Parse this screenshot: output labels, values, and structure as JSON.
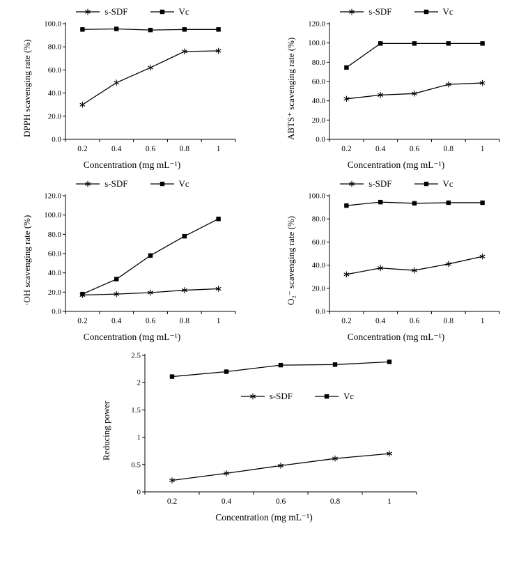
{
  "page": {
    "background": "#ffffff",
    "line_color": "#000000"
  },
  "chart_data": [
    {
      "type": "line",
      "title": "",
      "xlabel": "Concentration (mg mL⁻¹)",
      "ylabel": "DPPH scavenging rate (%)",
      "x_categories": [
        "0.2",
        "0.4",
        "0.6",
        "0.8",
        "1"
      ],
      "ylim": [
        0,
        100
      ],
      "ytick_labels": [
        "0.0",
        "20.0",
        "40.0",
        "60.0",
        "80.0",
        "100.0"
      ],
      "grid": false,
      "legend_position": "top",
      "series": [
        {
          "name": "s-SDF",
          "marker": "asterisk",
          "values": [
            30,
            49,
            62,
            76,
            76.5
          ]
        },
        {
          "name": "Vc",
          "marker": "square",
          "values": [
            95,
            95.5,
            94.5,
            95,
            95
          ]
        }
      ]
    },
    {
      "type": "line",
      "title": "",
      "xlabel": "Concentration (mg mL⁻¹)",
      "ylabel": "ABTS⁺ scavenging rate (%)",
      "x_categories": [
        "0.2",
        "0.4",
        "0.6",
        "0.8",
        "1"
      ],
      "ylim": [
        0,
        120
      ],
      "ytick_labels": [
        "0.0",
        "20.0",
        "40.0",
        "60.0",
        "80.0",
        "100.0",
        "120.0"
      ],
      "grid": false,
      "legend_position": "top",
      "series": [
        {
          "name": "s-SDF",
          "marker": "asterisk",
          "values": [
            42,
            46,
            47.5,
            57,
            58.5
          ]
        },
        {
          "name": "Vc",
          "marker": "square",
          "values": [
            74.5,
            99.5,
            99.5,
            99.5,
            99.5
          ]
        }
      ]
    },
    {
      "type": "line",
      "title": "",
      "xlabel": "Concentration (mg mL⁻¹)",
      "ylabel": "·OH scavenging rate (%)",
      "x_categories": [
        "0.2",
        "0.4",
        "0.6",
        "0.8",
        "1"
      ],
      "ylim": [
        0,
        120
      ],
      "ytick_labels": [
        "0.0",
        "20.0",
        "40.0",
        "60.0",
        "80.0",
        "100.0",
        "120.0"
      ],
      "grid": false,
      "legend_position": "top",
      "series": [
        {
          "name": "s-SDF",
          "marker": "asterisk",
          "values": [
            17,
            18,
            19.5,
            22,
            23.5
          ]
        },
        {
          "name": "Vc",
          "marker": "square",
          "values": [
            18,
            33.5,
            58,
            78,
            96
          ]
        }
      ]
    },
    {
      "type": "line",
      "title": "",
      "xlabel": "Concentration (mg mL⁻¹)",
      "ylabel": "O₂⁻ scavenging rate (%)",
      "x_categories": [
        "0.2",
        "0.4",
        "0.6",
        "0.8",
        "1"
      ],
      "ylim": [
        0,
        100
      ],
      "ytick_labels": [
        "0.0",
        "20.0",
        "40.0",
        "60.0",
        "80.0",
        "100.0"
      ],
      "grid": false,
      "legend_position": "top",
      "series": [
        {
          "name": "s-SDF",
          "marker": "asterisk",
          "values": [
            32,
            37.5,
            35.5,
            41,
            47.5
          ]
        },
        {
          "name": "Vc",
          "marker": "square",
          "values": [
            91.5,
            94.5,
            93.5,
            94,
            94
          ]
        }
      ]
    },
    {
      "type": "line",
      "title": "",
      "xlabel": "Concentration (mg mL⁻¹)",
      "ylabel": "Reducing power",
      "x_categories": [
        "0.2",
        "0.4",
        "0.6",
        "0.8",
        "1"
      ],
      "ylim": [
        0,
        2.5
      ],
      "ytick_labels": [
        "0",
        "0.5",
        "1",
        "1.5",
        "2",
        "2.5"
      ],
      "grid": false,
      "legend_position": "inset",
      "series": [
        {
          "name": "s-SDF",
          "marker": "asterisk",
          "values": [
            0.21,
            0.34,
            0.48,
            0.61,
            0.7
          ]
        },
        {
          "name": "Vc",
          "marker": "square",
          "values": [
            2.11,
            2.2,
            2.32,
            2.33,
            2.38
          ]
        }
      ]
    }
  ]
}
